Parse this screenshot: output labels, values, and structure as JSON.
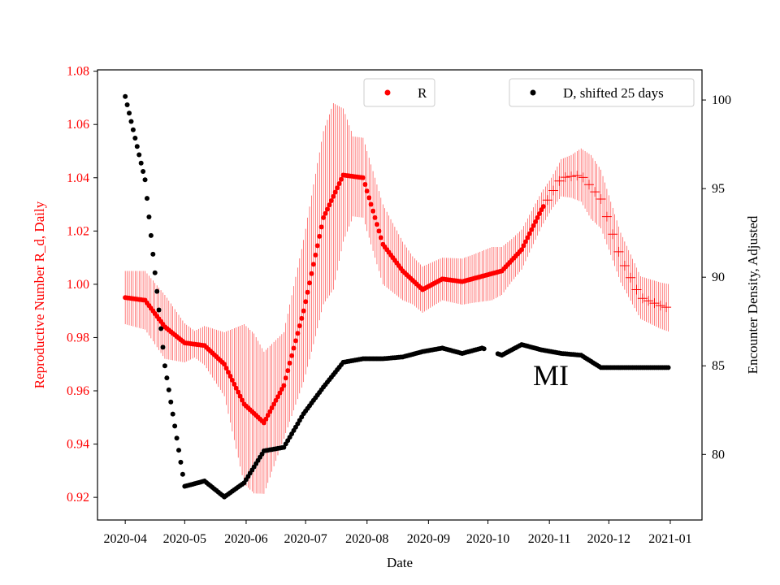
{
  "chart_data": {
    "type": "scatter",
    "xlabel": "Date",
    "x_ticks": [
      "2020-04",
      "2020-05",
      "2020-06",
      "2020-07",
      "2020-08",
      "2020-09",
      "2020-10",
      "2020-11",
      "2020-12",
      "2021-01"
    ],
    "x_tick_days": [
      0,
      30,
      61,
      91,
      122,
      153,
      183,
      214,
      244,
      275
    ],
    "x_range_days": [
      -14,
      291
    ],
    "y_left": {
      "label": "Reproductive Number R_d, Daily",
      "color": "#ff0000",
      "range": [
        0.9115,
        1.0805
      ],
      "ticks": [
        "0.92",
        "0.94",
        "0.96",
        "0.98",
        "1.00",
        "1.02",
        "1.04",
        "1.06",
        "1.08"
      ]
    },
    "y_right": {
      "label": "Encounter Density, Adjusted",
      "color": "#000000",
      "range": [
        76.3,
        101.7
      ],
      "ticks": [
        "80",
        "85",
        "90",
        "95",
        "100"
      ]
    },
    "annotation": "MI",
    "legend_r": "R",
    "legend_d": "D, shifted 25 days",
    "series_r": {
      "name": "R",
      "color": "#ff0000",
      "start_day": 0,
      "values_by_10_days": [
        0.995,
        0.994,
        0.984,
        0.978,
        0.977,
        0.97,
        0.955,
        0.948,
        0.962,
        0.99,
        1.025,
        1.041,
        1.04,
        1.015,
        1.005,
        0.998,
        1.002,
        1.001,
        1.003,
        1.005,
        1.013,
        1.028,
        1.04,
        1.041,
        1.032,
        1.01,
        0.995,
        0.992,
        0.99
      ],
      "final_day": 274,
      "final_value": 0.99,
      "errorbar_half_width": {
        "days": [
          0,
          20,
          35,
          50,
          60,
          65,
          80,
          95,
          105,
          115,
          130,
          145,
          160,
          175,
          185,
          195,
          205,
          215,
          225,
          235,
          245,
          260,
          275
        ],
        "values": [
          0.01,
          0.012,
          0.005,
          0.012,
          0.03,
          0.03,
          0.02,
          0.03,
          0.035,
          0.015,
          0.015,
          0.009,
          0.008,
          0.009,
          0.01,
          0.008,
          0.007,
          0.006,
          0.008,
          0.012,
          0.01,
          0.008,
          0.009
        ]
      },
      "cross_markers_from_day": 212
    },
    "series_d": {
      "name": "D, shifted 25 days",
      "color": "#000000",
      "start_day": 0,
      "values_by_10_days": [
        100.2,
        95.5,
        85.0,
        78.2,
        78.5,
        77.6,
        78.4,
        80.2,
        80.4,
        82.3,
        83.8,
        85.2,
        85.4,
        85.4,
        85.5,
        85.8,
        86.0,
        85.7,
        86.0,
        85.6,
        86.2,
        85.9,
        85.7,
        85.6,
        84.9,
        84.9,
        84.9,
        84.9,
        84.9
      ],
      "final_day": 274,
      "final_value": 84.9,
      "gap_days": [
        182,
        187
      ]
    }
  }
}
